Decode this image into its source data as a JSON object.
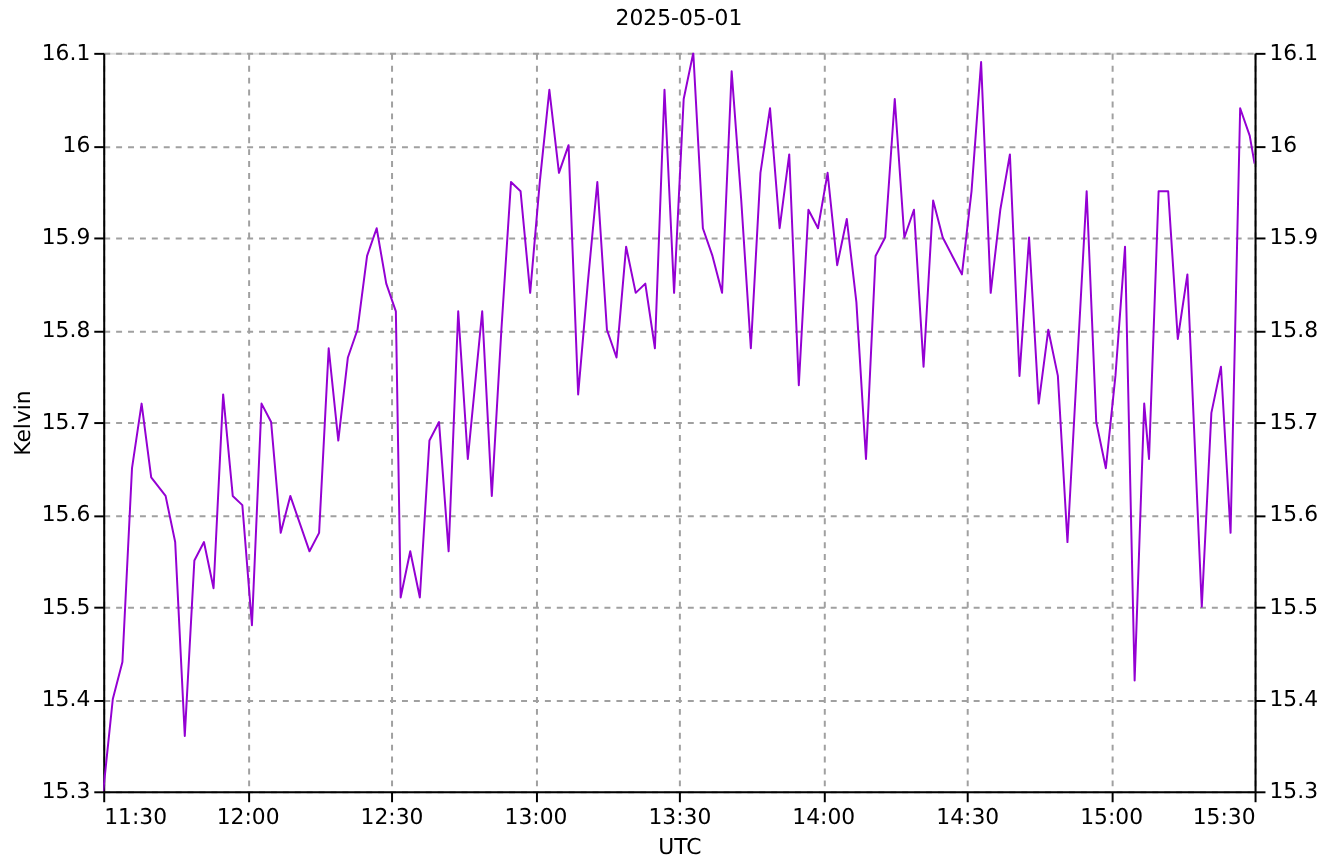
{
  "chart_data": {
    "type": "line",
    "title": "2025-05-01",
    "xlabel": "UTC",
    "ylabel": "Kelvin",
    "x": [
      "2025-05-01T11:30",
      "2025-05-01T11:32",
      "2025-05-01T11:34",
      "2025-05-01T11:36",
      "2025-05-01T11:38",
      "2025-05-01T11:40",
      "2025-05-01T11:43",
      "2025-05-01T11:45",
      "2025-05-01T11:47",
      "2025-05-01T11:49",
      "2025-05-01T11:51",
      "2025-05-01T11:53",
      "2025-05-01T11:55",
      "2025-05-01T11:57",
      "2025-05-01T11:59",
      "2025-05-01T12:01",
      "2025-05-01T12:03",
      "2025-05-01T12:05",
      "2025-05-01T12:07",
      "2025-05-01T12:09",
      "2025-05-01T12:13",
      "2025-05-01T12:15",
      "2025-05-01T12:17",
      "2025-05-01T12:19",
      "2025-05-01T12:21",
      "2025-05-01T12:23",
      "2025-05-01T12:25",
      "2025-05-01T12:27",
      "2025-05-01T12:29",
      "2025-05-01T12:31",
      "2025-05-01T12:32",
      "2025-05-01T12:34",
      "2025-05-01T12:36",
      "2025-05-01T12:38",
      "2025-05-01T12:40",
      "2025-05-01T12:42",
      "2025-05-01T12:44",
      "2025-05-01T12:46",
      "2025-05-01T12:49",
      "2025-05-01T12:51",
      "2025-05-01T12:53",
      "2025-05-01T12:55",
      "2025-05-01T12:57",
      "2025-05-01T12:59",
      "2025-05-01T13:01",
      "2025-05-01T13:03",
      "2025-05-01T13:05",
      "2025-05-01T13:07",
      "2025-05-01T13:09",
      "2025-05-01T13:11",
      "2025-05-01T13:13",
      "2025-05-01T13:15",
      "2025-05-01T13:17",
      "2025-05-01T13:19",
      "2025-05-01T13:21",
      "2025-05-01T13:23",
      "2025-05-01T13:25",
      "2025-05-01T13:27",
      "2025-05-01T13:29",
      "2025-05-01T13:31",
      "2025-05-01T13:33",
      "2025-05-01T13:35",
      "2025-05-01T13:37",
      "2025-05-01T13:39",
      "2025-05-01T13:41",
      "2025-05-01T13:43",
      "2025-05-01T13:45",
      "2025-05-01T13:47",
      "2025-05-01T13:49",
      "2025-05-01T13:51",
      "2025-05-01T13:53",
      "2025-05-01T13:55",
      "2025-05-01T13:57",
      "2025-05-01T13:59",
      "2025-05-01T14:01",
      "2025-05-01T14:03",
      "2025-05-01T14:05",
      "2025-05-01T14:07",
      "2025-05-01T14:09",
      "2025-05-01T14:11",
      "2025-05-01T14:13",
      "2025-05-01T14:15",
      "2025-05-01T14:17",
      "2025-05-01T14:19",
      "2025-05-01T14:21",
      "2025-05-01T14:23",
      "2025-05-01T14:25",
      "2025-05-01T14:27",
      "2025-05-01T14:29",
      "2025-05-01T14:31",
      "2025-05-01T14:33",
      "2025-05-01T14:35",
      "2025-05-01T14:37",
      "2025-05-01T14:39",
      "2025-05-01T14:41",
      "2025-05-01T14:43",
      "2025-05-01T14:45",
      "2025-05-01T14:47",
      "2025-05-01T14:49",
      "2025-05-01T14:51",
      "2025-05-01T14:53",
      "2025-05-01T14:55",
      "2025-05-01T14:57",
      "2025-05-01T14:59",
      "2025-05-01T15:01",
      "2025-05-01T15:03",
      "2025-05-01T15:05",
      "2025-05-01T15:07",
      "2025-05-01T15:08",
      "2025-05-01T15:10",
      "2025-05-01T15:12",
      "2025-05-01T15:14",
      "2025-05-01T15:16",
      "2025-05-01T15:18",
      "2025-05-01T15:19",
      "2025-05-01T15:21",
      "2025-05-01T15:23",
      "2025-05-01T15:25",
      "2025-05-01T15:27",
      "2025-05-01T15:29",
      "2025-05-01T15:30"
    ],
    "series": [
      {
        "color": "#9400d3",
        "values": [
          15.3,
          15.4,
          15.44,
          15.65,
          15.72,
          15.64,
          15.62,
          15.57,
          15.36,
          15.55,
          15.57,
          15.52,
          15.73,
          15.62,
          15.61,
          15.48,
          15.72,
          15.7,
          15.58,
          15.62,
          15.56,
          15.58,
          15.78,
          15.68,
          15.77,
          15.8,
          15.88,
          15.91,
          15.85,
          15.82,
          15.51,
          15.56,
          15.51,
          15.68,
          15.7,
          15.56,
          15.82,
          15.66,
          15.82,
          15.62,
          15.8,
          15.96,
          15.95,
          15.84,
          15.96,
          16.06,
          15.97,
          16.0,
          15.73,
          15.85,
          15.96,
          15.8,
          15.77,
          15.89,
          15.84,
          15.85,
          15.78,
          16.06,
          15.84,
          16.05,
          16.1,
          15.91,
          15.88,
          15.84,
          16.08,
          15.94,
          15.78,
          15.97,
          16.04,
          15.91,
          15.99,
          15.74,
          15.93,
          15.91,
          15.97,
          15.87,
          15.92,
          15.83,
          15.66,
          15.88,
          15.9,
          16.05,
          15.9,
          15.93,
          15.76,
          15.94,
          15.9,
          15.88,
          15.86,
          15.95,
          16.09,
          15.84,
          15.93,
          15.99,
          15.75,
          15.9,
          15.72,
          15.8,
          15.75,
          15.57,
          15.76,
          15.95,
          15.7,
          15.65,
          15.75,
          15.89,
          15.42,
          15.72,
          15.66,
          15.95,
          15.95,
          15.79,
          15.86,
          15.62,
          15.5,
          15.71,
          15.76,
          15.58,
          16.04,
          16.01,
          15.98
        ]
      }
    ],
    "xlim": [
      "2025-05-01T11:30",
      "2025-05-01T15:30"
    ],
    "xticks": [
      {
        "value": "2025-05-01T11:30",
        "label": "11:30"
      },
      {
        "value": "2025-05-01T12:00",
        "label": "12:00"
      },
      {
        "value": "2025-05-01T12:30",
        "label": "12:30"
      },
      {
        "value": "2025-05-01T13:00",
        "label": "13:00"
      },
      {
        "value": "2025-05-01T13:30",
        "label": "13:30"
      },
      {
        "value": "2025-05-01T14:00",
        "label": "14:00"
      },
      {
        "value": "2025-05-01T14:30",
        "label": "14:30"
      },
      {
        "value": "2025-05-01T15:00",
        "label": "15:00"
      },
      {
        "value": "2025-05-01T15:30",
        "label": "15:30"
      }
    ],
    "ylim": [
      15.3,
      16.1
    ],
    "yticks": [
      15.3,
      15.4,
      15.5,
      15.6,
      15.7,
      15.8,
      15.9,
      16,
      16.1
    ],
    "y2lim": [
      15.3,
      16.1
    ],
    "y2ticks": [
      15.3,
      15.4,
      15.5,
      15.6,
      15.7,
      15.8,
      15.9,
      16,
      16.1
    ],
    "grid": true,
    "marker": "none",
    "line_style": "solid"
  }
}
